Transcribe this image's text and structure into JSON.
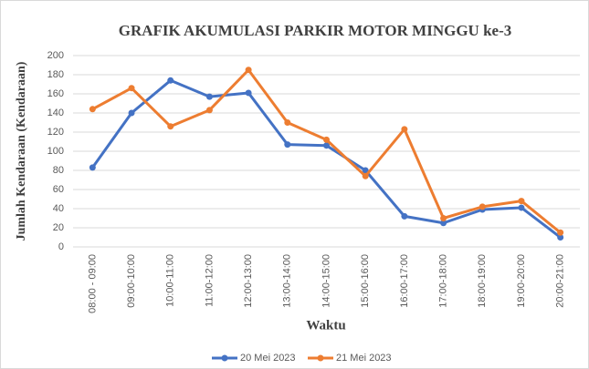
{
  "chart_data": {
    "type": "line",
    "title": "GRAFIK AKUMULASI PARKIR MOTOR MINGGU ke-3",
    "x_label": "Waktu",
    "y_label": "Jumlah Kendaraan (Kendaraan)",
    "categories": [
      "08:00 - 09:00",
      "09:00-10:00",
      "10:00-11:00",
      "11:00-12:00",
      "12:00-13:00",
      "13:00-14:00",
      "14:00-15:00",
      "15:00-16:00",
      "16:00-17:00",
      "17:00-18:00",
      "18:00-19:00",
      "19:00-20:00",
      "20:00-21:00"
    ],
    "series": [
      {
        "name": "20 Mei 2023",
        "color": "#4472c4",
        "values": [
          83,
          140,
          174,
          157,
          161,
          107,
          106,
          80,
          32,
          25,
          39,
          41,
          10
        ]
      },
      {
        "name": "21 Mei 2023",
        "color": "#ed7d31",
        "values": [
          144,
          166,
          126,
          143,
          185,
          130,
          112,
          74,
          123,
          30,
          42,
          48,
          15
        ]
      }
    ],
    "ylim": [
      0,
      200
    ],
    "yticks": [
      0,
      20,
      40,
      60,
      80,
      100,
      120,
      140,
      160,
      180,
      200
    ],
    "grid": true,
    "legend": "bottom"
  }
}
